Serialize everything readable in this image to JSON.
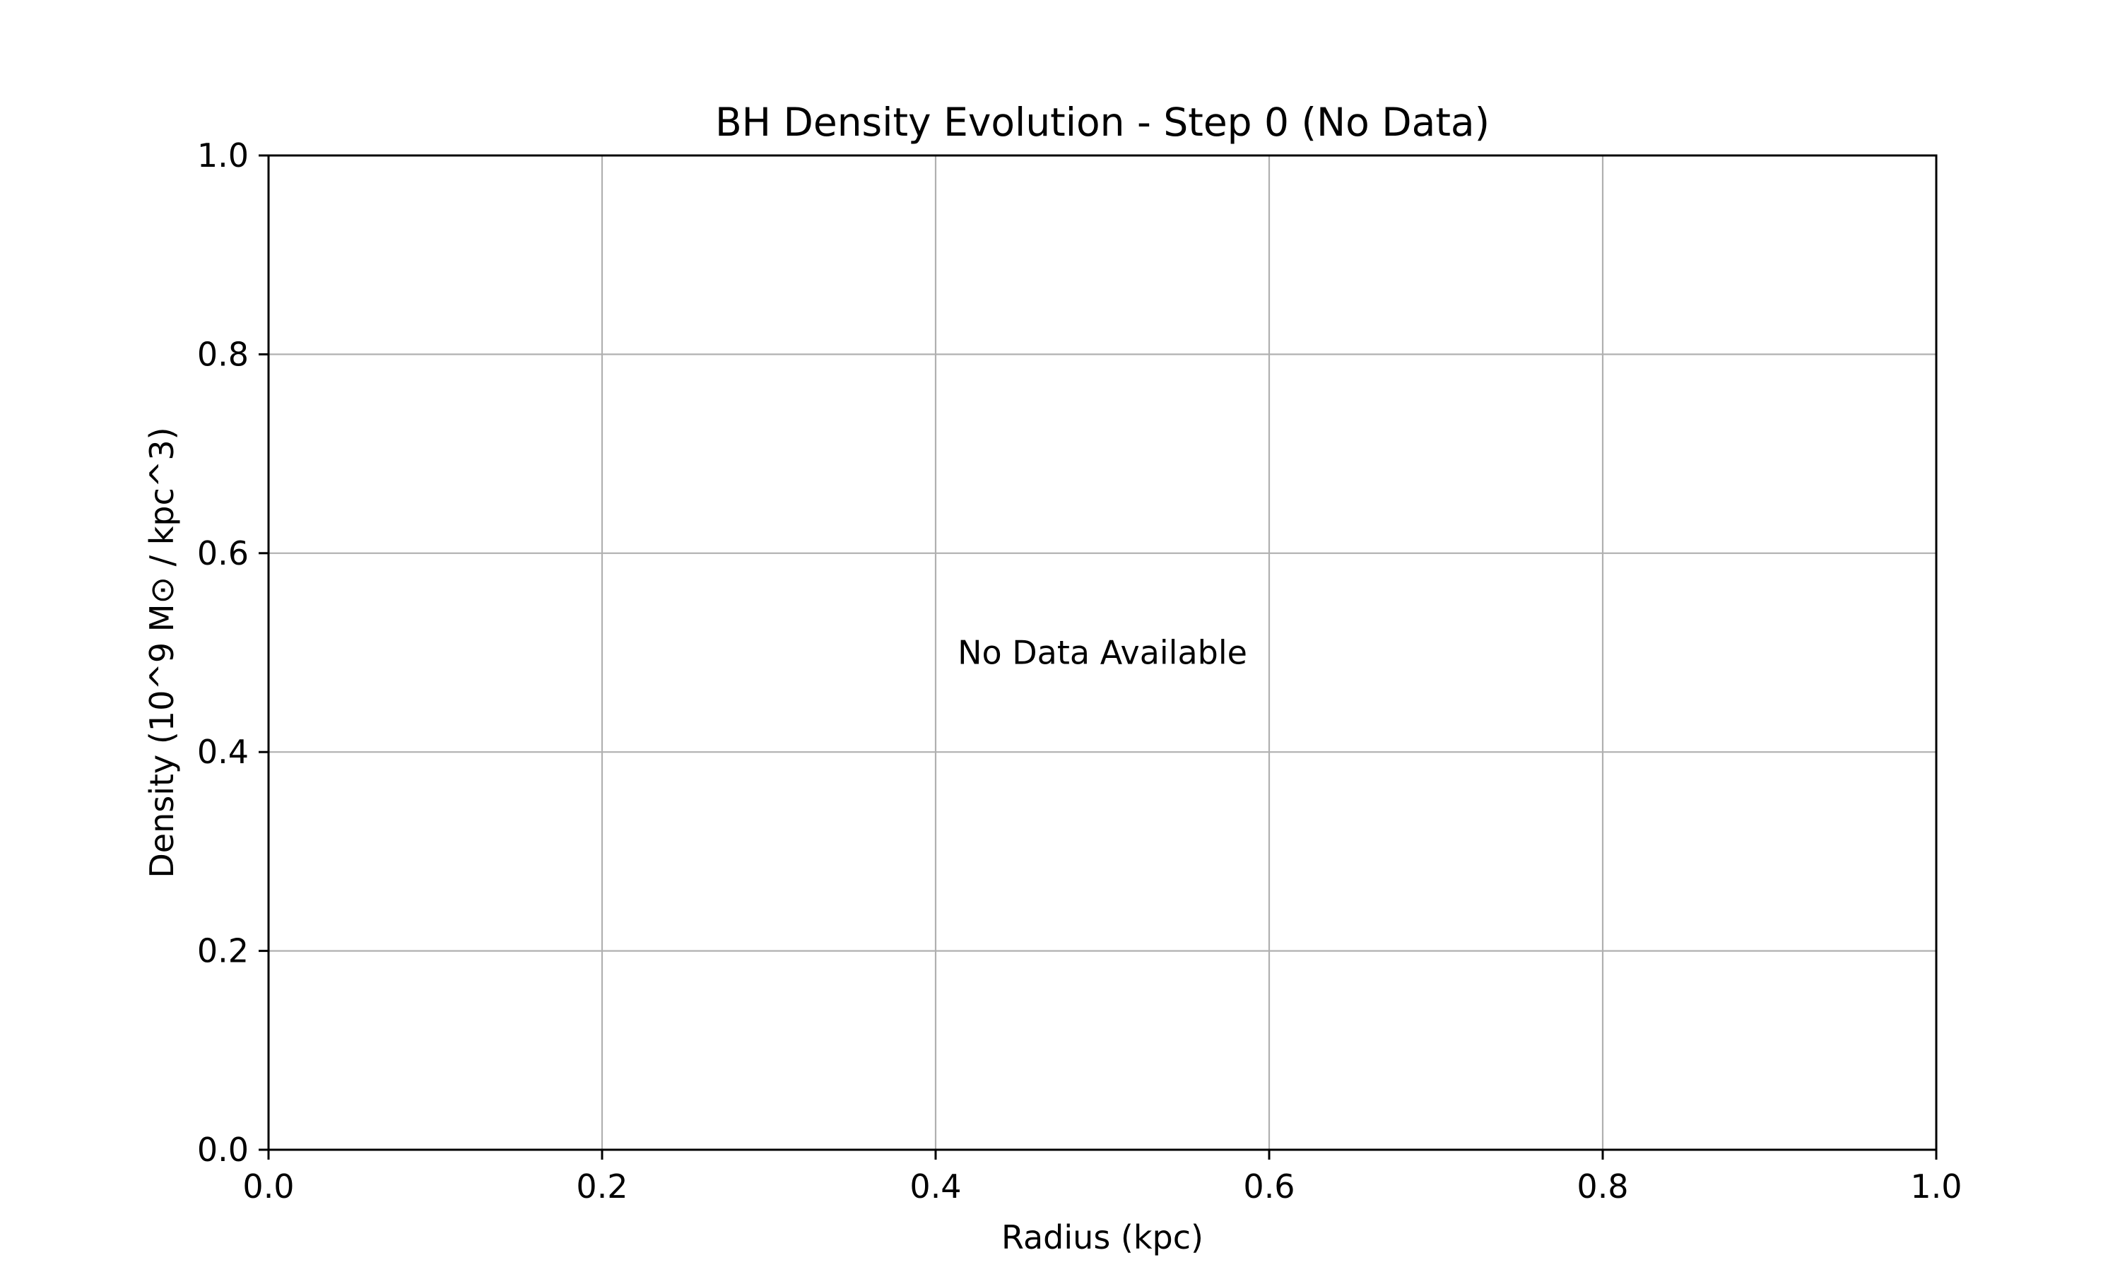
{
  "chart_data": {
    "type": "line",
    "title": "BH Density Evolution - Step 0 (No Data)",
    "xlabel": "Radius (kpc)",
    "ylabel": "Density (10^9 M⊙ / kpc^3)",
    "xlim": [
      0.0,
      1.0
    ],
    "ylim": [
      0.0,
      1.0
    ],
    "x_ticks": [
      0.0,
      0.2,
      0.4,
      0.6,
      0.8,
      1.0
    ],
    "y_ticks": [
      0.0,
      0.2,
      0.4,
      0.6,
      0.8,
      1.0
    ],
    "x_tick_labels": [
      "0.0",
      "0.2",
      "0.4",
      "0.6",
      "0.8",
      "1.0"
    ],
    "y_tick_labels": [
      "0.0",
      "0.2",
      "0.4",
      "0.6",
      "0.8",
      "1.0"
    ],
    "grid": true,
    "series": [],
    "annotations": [
      {
        "text": "No Data Available",
        "x": 0.5,
        "y": 0.5
      }
    ],
    "colors": {
      "grid": "#b0b0b0",
      "axes": "#000000",
      "background": "#ffffff"
    }
  }
}
